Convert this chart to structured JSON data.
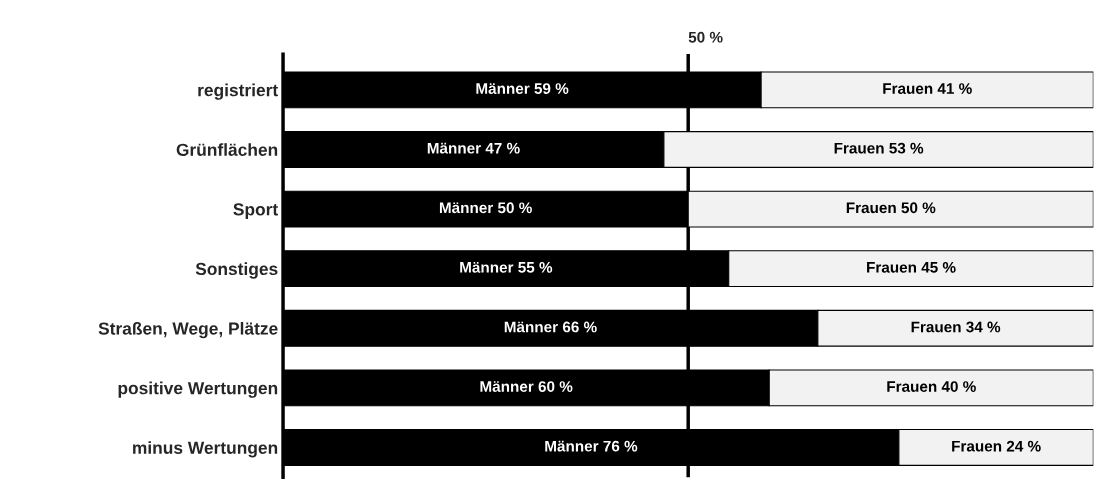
{
  "chart_data": {
    "type": "bar",
    "orientation": "horizontal",
    "stacked": true,
    "categories": [
      "registriert",
      "Grünflächen",
      "Sport",
      "Sonstiges",
      "Straßen, Wege, Plätze",
      "positive Wertungen",
      "minus Wertungen"
    ],
    "series": [
      {
        "color": "#000000",
        "values": [
          59,
          47,
          50,
          55,
          66,
          60,
          76
        ],
        "value_labels": [
          "Männer 59 %",
          "Männer 47 %",
          "Männer 50 %",
          "Männer 55 %",
          "Männer 66 %",
          "Männer 60 %",
          "Männer 76 %"
        ]
      },
      {
        "color": "#f2f2f2",
        "values": [
          41,
          53,
          50,
          45,
          34,
          40,
          24
        ],
        "value_labels": [
          "Frauen 41 %",
          "Frauen 53 %",
          "Frauen 50 %",
          "Frauen 45 %",
          "Frauen 34 %",
          "Frauen 40 %",
          "Frauen 24 %"
        ]
      }
    ],
    "xlim": [
      0,
      100
    ],
    "ref_lines": [
      {
        "axis": "x",
        "value": 50,
        "label": "50 %",
        "color": "#000000"
      }
    ],
    "tick_labels": "y",
    "grid": false,
    "legend": false
  }
}
